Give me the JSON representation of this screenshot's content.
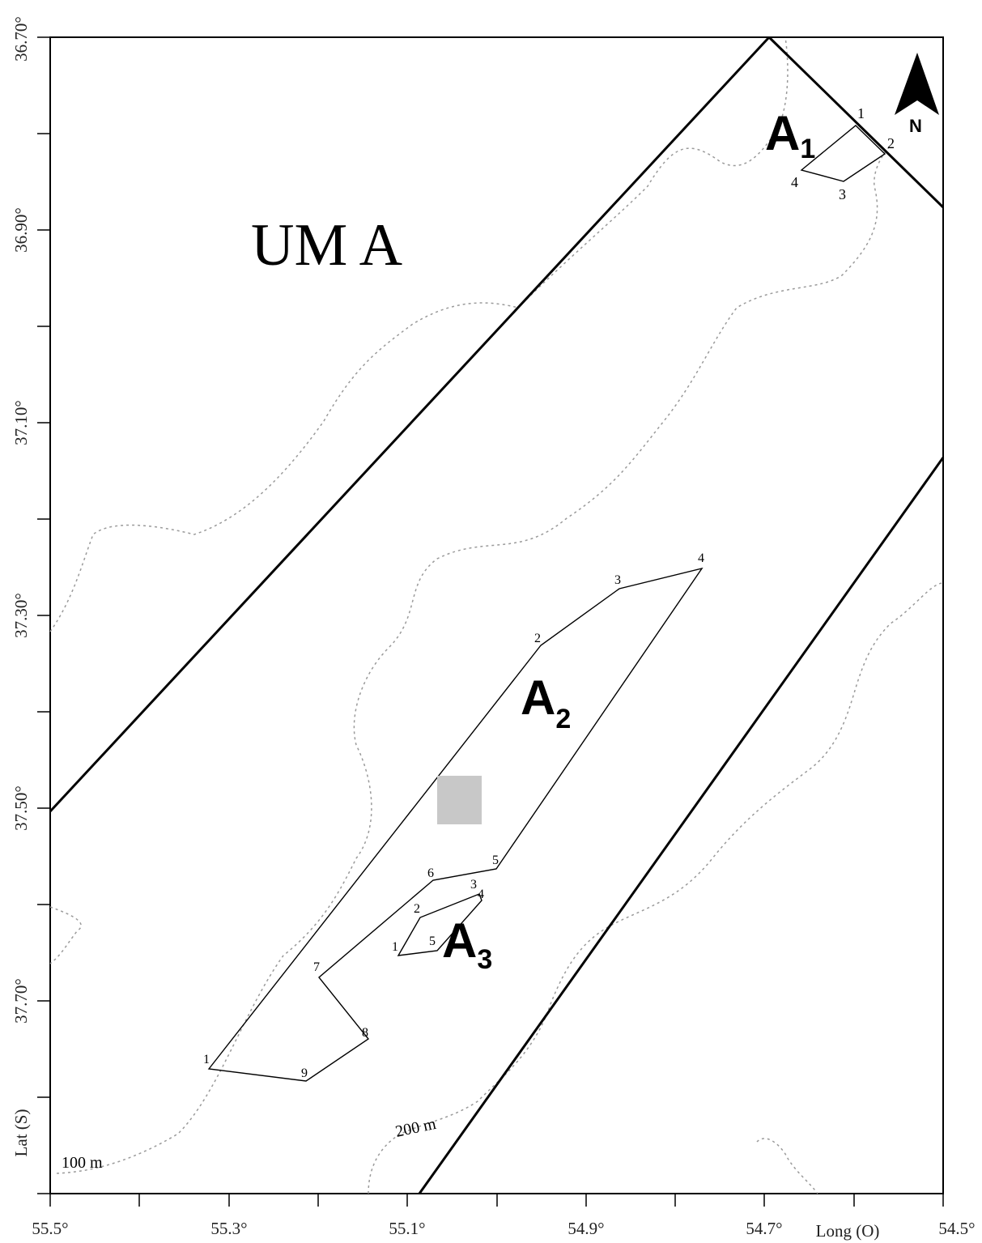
{
  "map": {
    "zone_label": "UM A",
    "x_axis_label": "Long (O)",
    "y_axis_label": "Lat (S)",
    "north_label": "N",
    "lon_ticks": [
      "55.5°",
      "55.3°",
      "55.1°",
      "54.9°",
      "54.7°",
      "54.5°"
    ],
    "lat_ticks": [
      "36.70°",
      "36.90°",
      "37.10°",
      "37.30°",
      "37.50°",
      "37.70°"
    ],
    "contours": [
      {
        "label": "100 m"
      },
      {
        "label": "200 m"
      }
    ],
    "areas": [
      {
        "name": "A",
        "sub": "1",
        "vertex_labels": [
          "1",
          "2",
          "3",
          "4"
        ]
      },
      {
        "name": "A",
        "sub": "2",
        "vertex_labels": [
          "1",
          "2",
          "3",
          "4",
          "5",
          "6",
          "7",
          "8",
          "9"
        ]
      },
      {
        "name": "A",
        "sub": "3",
        "vertex_labels": [
          "1",
          "2",
          "3",
          "4",
          "5"
        ]
      }
    ],
    "colors": {
      "frame": "#000000",
      "contour": "#9a9a9a",
      "gray_box": "#c8c8c8"
    }
  }
}
